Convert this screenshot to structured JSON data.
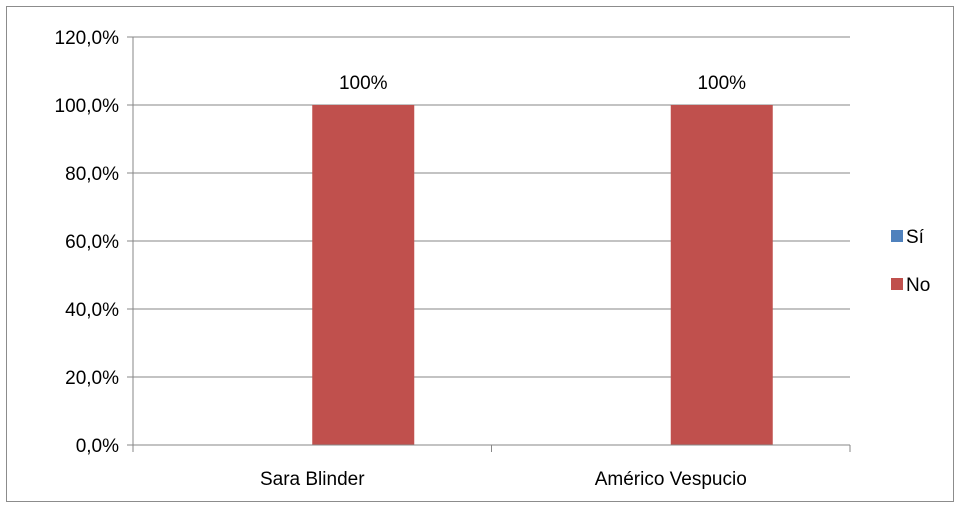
{
  "chart_data": {
    "type": "bar",
    "categories": [
      "Sara Blinder",
      "Américo Vespucio"
    ],
    "series": [
      {
        "name": "Sí",
        "values": [
          0,
          0
        ],
        "color": "#4f81bd"
      },
      {
        "name": "No",
        "values": [
          100,
          100
        ],
        "color": "#c0504d"
      }
    ],
    "data_labels": {
      "No": [
        "100%",
        "100%"
      ]
    },
    "y_ticks": [
      "0,0%",
      "20,0%",
      "40,0%",
      "60,0%",
      "80,0%",
      "100,0%",
      "120,0%"
    ],
    "ylim": [
      0,
      120
    ],
    "y_tick_step": 20,
    "grid": true,
    "legend": "right",
    "title": "",
    "xlabel": "",
    "ylabel": ""
  }
}
